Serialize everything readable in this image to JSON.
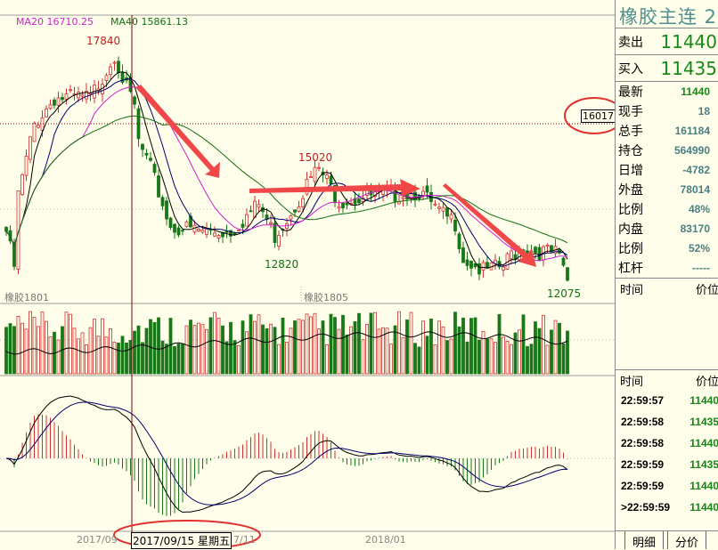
{
  "legend": {
    "ma20": "MA20 16710.25",
    "ma40": "MA40 15861.13"
  },
  "colors": {
    "up": "#d03030",
    "down": "#187818",
    "ma5": "#000000",
    "ma10": "#00006e",
    "ma20": "#d020d0",
    "ma40": "#107010",
    "crosshair": "#800000",
    "annotation": "#f04040"
  },
  "annotations": {
    "high_label": "17840",
    "mid_high_label": "15020",
    "mid_low_label": "12820",
    "low_label": "12075",
    "contract_1": "橡胶1801",
    "contract_2": "橡胶1805",
    "cursor_price": "16017",
    "cursor_date": "2017/09/15 星期五"
  },
  "chart_data": {
    "type": "candlestick",
    "indicators": [
      "MA5",
      "MA10",
      "MA20",
      "MA40",
      "VOL",
      "MACD"
    ],
    "x_tick_labels": [
      "2017/09",
      "7/11",
      "2018/01"
    ],
    "ylim": [
      12075,
      17840
    ],
    "close_anchors": [
      {
        "i": 0,
        "close": 13346
      },
      {
        "i": 2,
        "close": 12470
      },
      {
        "i": 3,
        "close": 14223
      },
      {
        "i": 7,
        "close": 15977
      },
      {
        "i": 12,
        "close": 16634
      },
      {
        "i": 21,
        "close": 16634
      },
      {
        "i": 26,
        "close": 17511
      },
      {
        "i": 27,
        "close": 17730
      },
      {
        "i": 30,
        "close": 16854
      },
      {
        "i": 32,
        "close": 16415
      },
      {
        "i": 33,
        "close": 15538
      },
      {
        "i": 36,
        "close": 14880
      },
      {
        "i": 41,
        "close": 13456
      },
      {
        "i": 50,
        "close": 13346
      },
      {
        "i": 56,
        "close": 13346
      },
      {
        "i": 63,
        "close": 14004
      },
      {
        "i": 67,
        "close": 13237
      },
      {
        "i": 70,
        "close": 13675
      },
      {
        "i": 76,
        "close": 14661
      },
      {
        "i": 78,
        "close": 14880
      },
      {
        "i": 83,
        "close": 14113
      },
      {
        "i": 92,
        "close": 14223
      },
      {
        "i": 103,
        "close": 14333
      },
      {
        "i": 108,
        "close": 13785
      },
      {
        "i": 112,
        "close": 13565
      },
      {
        "i": 114,
        "close": 12689
      },
      {
        "i": 119,
        "close": 12360
      },
      {
        "i": 124,
        "close": 12470
      },
      {
        "i": 126,
        "close": 12798
      },
      {
        "i": 130,
        "close": 12908
      },
      {
        "i": 137,
        "close": 12798
      },
      {
        "i": 139,
        "close": 12470
      },
      {
        "i": 140,
        "close": 12141
      }
    ]
  },
  "side": {
    "title": "橡胶主连 2",
    "sell": {
      "label": "卖出",
      "value": "11440"
    },
    "buy": {
      "label": "买入",
      "value": "11435"
    },
    "rows": [
      {
        "label": "最新",
        "value": "11440"
      },
      {
        "label": "现手",
        "value": "18"
      },
      {
        "label": "总手",
        "value": "161184"
      },
      {
        "label": "持仓",
        "value": "564990"
      },
      {
        "label": "日增",
        "value": "-4782"
      },
      {
        "label": "外盘",
        "value": "78014"
      },
      {
        "label": "比例",
        "value": "48%"
      },
      {
        "label": "内盘",
        "value": "83170"
      },
      {
        "label": "比例",
        "value": "52%"
      },
      {
        "label": "杠杆",
        "value": "-----"
      }
    ],
    "time_header": "时间",
    "price_header": "价位",
    "ticks": [
      {
        "time": "22:59:57",
        "price": "11440"
      },
      {
        "time": "22:59:58",
        "price": "11435"
      },
      {
        "time": "22:59:58",
        "price": "11440"
      },
      {
        "time": "22:59:59",
        "price": "11435"
      },
      {
        "time": "22:59:59",
        "price": "11440"
      },
      {
        "time": ">22:59:59",
        "price": "11440"
      }
    ],
    "tabs": [
      "明细",
      "分价"
    ]
  }
}
